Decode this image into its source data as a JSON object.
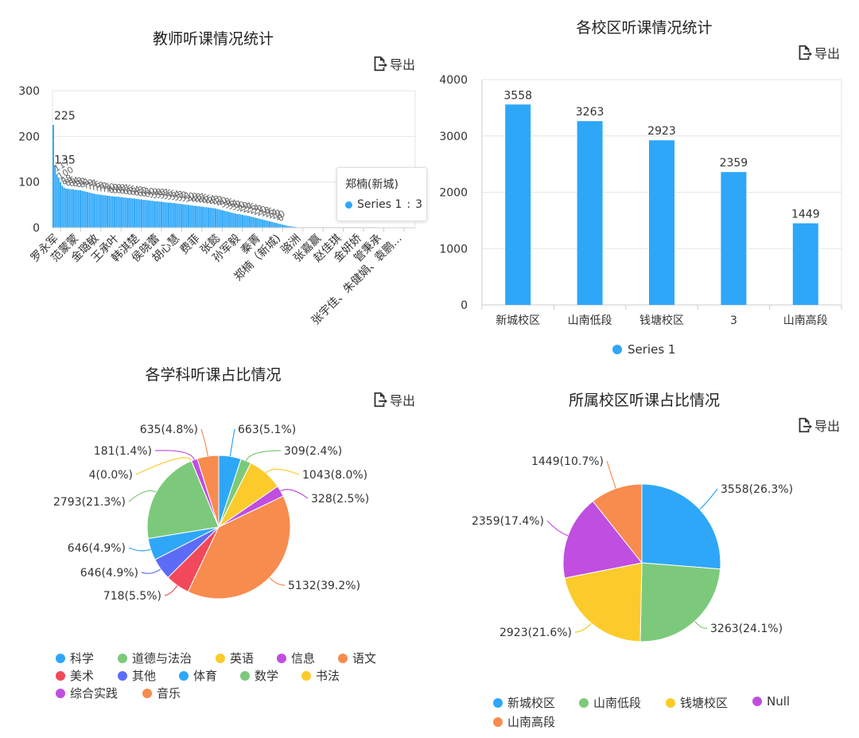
{
  "export_label": "导出",
  "icons": {
    "export": "export-icon"
  },
  "colors": {
    "bar": "#2ea7f9",
    "axis": "#cccccc",
    "grid": "#e6e6e6"
  },
  "panel1": {
    "tooltip": {
      "name": "郑楠(新城)",
      "series_name": "Series 1",
      "value": "3"
    }
  },
  "chart_data": [
    {
      "type": "bar",
      "title": "教师听课情况统计",
      "ylim": [
        0,
        300
      ],
      "yticks": [
        0,
        100,
        200,
        300
      ],
      "grid": true,
      "x_tick_labels": [
        "罗永军",
        "范蒙蒙",
        "金璐敏",
        "王承叶",
        "韩淇楚",
        "侯晓蕾",
        "胡心慧",
        "费菲",
        "张懿",
        "孙军毅",
        "秦菁",
        "郑楠（新城)",
        "骆洲",
        "张嘉赢",
        "赵佳琪",
        "金妍娇",
        "管秉承",
        "张宇佳、朱健娟、袁鹏..."
      ],
      "data_labels_visible": [
        "225",
        "135"
      ],
      "series": [
        {
          "name": "Series 1",
          "values": [
            225,
            135,
            117,
            110,
            100,
            92,
            88,
            86,
            85,
            85,
            84,
            84,
            83,
            83,
            82,
            82,
            81,
            80,
            79,
            78,
            77,
            76,
            75,
            74,
            73,
            73,
            72,
            72,
            71,
            71,
            70,
            70,
            69,
            69,
            68,
            68,
            68,
            67,
            67,
            66,
            66,
            65,
            65,
            65,
            64,
            64,
            63,
            63,
            62,
            62,
            61,
            61,
            60,
            60,
            59,
            59,
            58,
            58,
            58,
            57,
            57,
            56,
            56,
            55,
            55,
            55,
            54,
            54,
            53,
            53,
            52,
            52,
            51,
            51,
            50,
            50,
            49,
            49,
            48,
            48,
            47,
            47,
            46,
            46,
            45,
            45,
            44,
            44,
            43,
            43,
            42,
            41,
            40,
            39,
            38,
            37,
            36,
            35,
            34,
            33,
            32,
            31,
            30,
            30,
            29,
            28,
            27,
            27,
            26,
            25,
            24,
            23,
            22,
            21,
            20,
            19,
            18,
            17,
            16,
            15,
            14,
            13,
            12,
            11,
            10,
            9,
            8,
            7,
            6,
            5,
            4,
            3,
            3,
            2,
            2,
            1,
            1,
            1,
            1,
            1,
            1,
            1,
            1,
            1,
            1,
            1,
            1,
            1,
            1,
            1,
            1,
            1,
            1,
            1,
            1,
            1,
            1,
            1,
            1,
            1,
            1,
            1,
            1,
            1,
            1,
            1,
            1,
            1,
            1,
            1,
            1,
            1,
            1,
            1,
            1,
            1,
            1,
            1,
            1,
            1
          ]
        }
      ]
    },
    {
      "type": "bar",
      "title": "各校区听课情况统计",
      "categories": [
        "新城校区",
        "山南低段",
        "钱塘校区",
        "3",
        "山南高段"
      ],
      "series": [
        {
          "name": "Series 1",
          "values": [
            3558,
            3263,
            2923,
            2359,
            1449
          ]
        }
      ],
      "ylim": [
        0,
        4000
      ],
      "yticks": [
        0,
        1000,
        2000,
        3000,
        4000
      ],
      "grid": true,
      "legend": "bottom"
    },
    {
      "type": "pie",
      "title": "各学科听课占比情况",
      "slices": [
        {
          "name": "科学",
          "value": 663,
          "label": "663(5.1%)",
          "color": "#2ea7f9"
        },
        {
          "name": "道德与法治",
          "value": 309,
          "label": "309(2.4%)",
          "color": "#7dc97b"
        },
        {
          "name": "英语",
          "value": 1043,
          "label": "1043(8.0%)",
          "color": "#fbcb2c"
        },
        {
          "name": "信息",
          "value": 328,
          "label": "328(2.5%)",
          "color": "#c04ee0"
        },
        {
          "name": "语文",
          "value": 5132,
          "label": "5132(39.2%)",
          "color": "#f88b4e"
        },
        {
          "name": "美术",
          "value": 718,
          "label": "718(5.5%)",
          "color": "#f2485b"
        },
        {
          "name": "其他",
          "value": 646,
          "label": "646(4.9%)",
          "color": "#5d6cf7"
        },
        {
          "name": "体育",
          "value": 646,
          "label": "646(4.9%)",
          "color": "#2ea7f9"
        },
        {
          "name": "数学",
          "value": 2793,
          "label": "2793(21.3%)",
          "color": "#7dc97b"
        },
        {
          "name": "书法",
          "value": 4,
          "label": "4(0.0%)",
          "color": "#fbcb2c"
        },
        {
          "name": "综合实践",
          "value": 181,
          "label": "181(1.4%)",
          "color": "#c04ee0"
        },
        {
          "name": "音乐",
          "value": 635,
          "label": "635(4.8%)",
          "color": "#f88b4e"
        }
      ],
      "legend": "bottom"
    },
    {
      "type": "pie",
      "title": "所属校区听课占比情况",
      "slices": [
        {
          "name": "新城校区",
          "value": 3558,
          "label": "3558(26.3%)",
          "color": "#2ea7f9"
        },
        {
          "name": "山南低段",
          "value": 3263,
          "label": "3263(24.1%)",
          "color": "#7dc97b"
        },
        {
          "name": "钱塘校区",
          "value": 2923,
          "label": "2923(21.6%)",
          "color": "#fbcb2c"
        },
        {
          "name": "Null",
          "value": 2359,
          "label": "2359(17.4%)",
          "color": "#c04ee0"
        },
        {
          "name": "山南高段",
          "value": 1449,
          "label": "1449(10.7%)",
          "color": "#f88b4e"
        }
      ],
      "legend": "bottom"
    }
  ]
}
